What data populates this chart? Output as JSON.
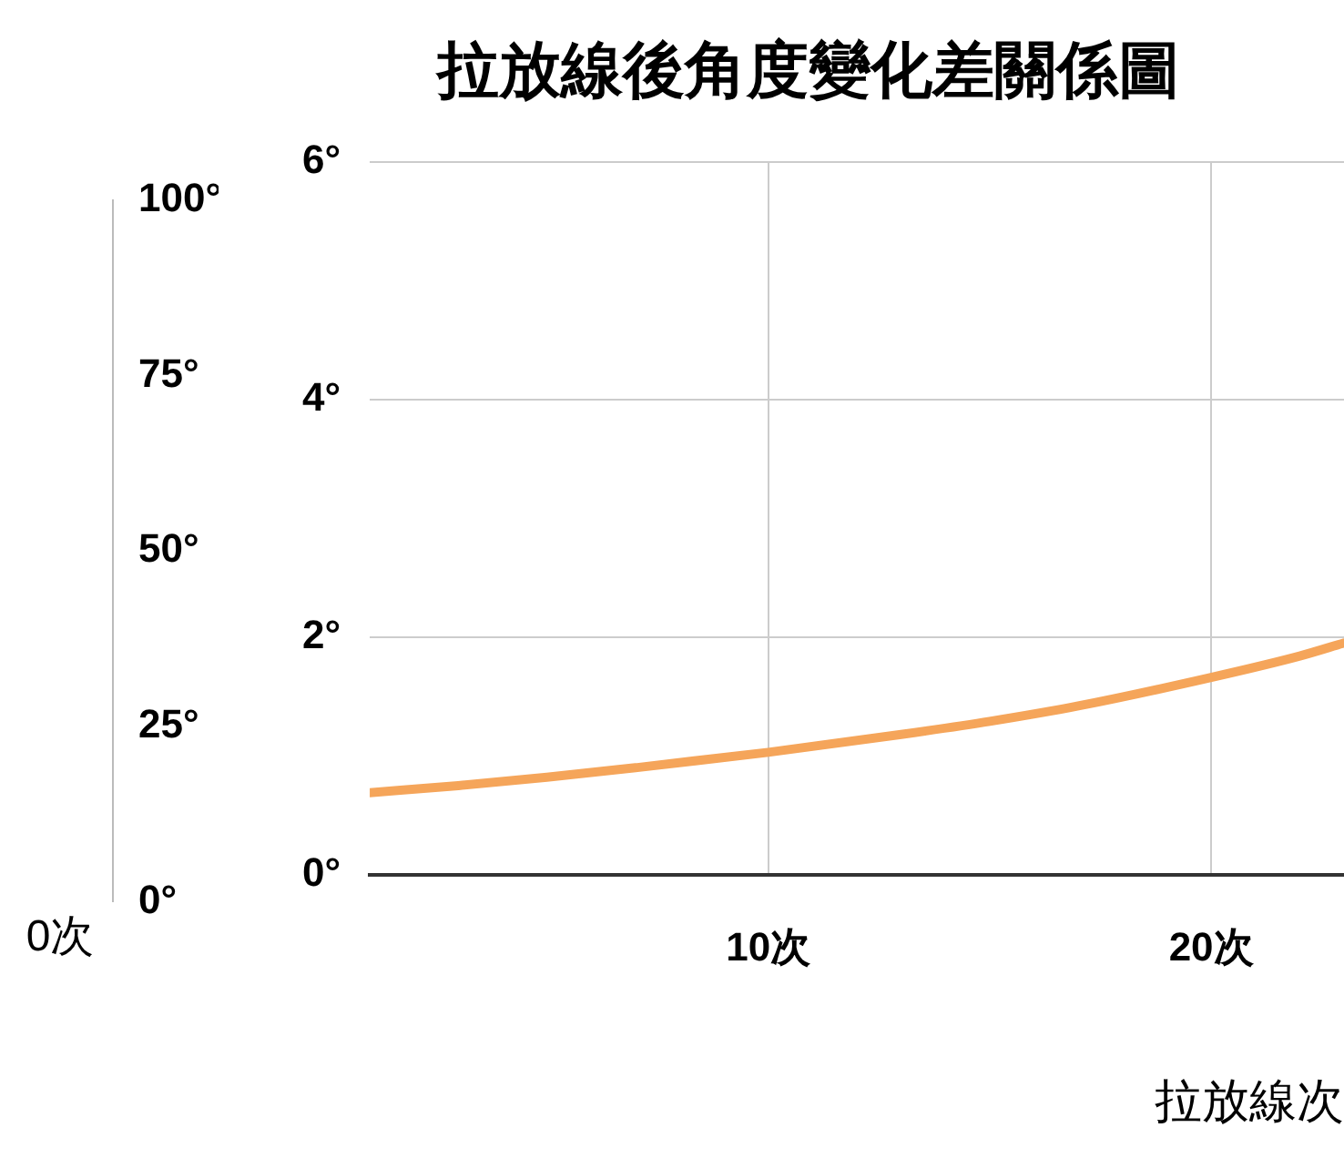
{
  "chart_data": [
    {
      "type": "line",
      "categories": [
        "0次"
      ],
      "values": [
        null
      ],
      "ylim": [
        0,
        100
      ],
      "yticks": [
        {
          "value": 0,
          "label": "0°"
        },
        {
          "value": 25,
          "label": "25°"
        },
        {
          "value": 50,
          "label": "50°"
        },
        {
          "value": 75,
          "label": "75°"
        },
        {
          "value": 100,
          "label": "100°"
        }
      ]
    },
    {
      "type": "line",
      "title": "拉放線後角度變化差關係圖",
      "xlabel": "拉放線次",
      "x": [
        1,
        3,
        5,
        7,
        10,
        13,
        15,
        17,
        20,
        22,
        23
      ],
      "values": [
        0.69,
        0.75,
        0.82,
        0.9,
        1.03,
        1.18,
        1.29,
        1.42,
        1.66,
        1.84,
        1.95
      ],
      "color": "#f5a55a",
      "xlim": [
        1,
        23
      ],
      "xticks": [
        {
          "value": 10,
          "label": "10次"
        },
        {
          "value": 20,
          "label": "20次"
        }
      ],
      "ylim": [
        0,
        6
      ],
      "yticks": [
        {
          "value": 0,
          "label": "0°"
        },
        {
          "value": 2,
          "label": "2°"
        },
        {
          "value": 4,
          "label": "4°"
        },
        {
          "value": 6,
          "label": "6°"
        }
      ],
      "grid": true
    }
  ]
}
